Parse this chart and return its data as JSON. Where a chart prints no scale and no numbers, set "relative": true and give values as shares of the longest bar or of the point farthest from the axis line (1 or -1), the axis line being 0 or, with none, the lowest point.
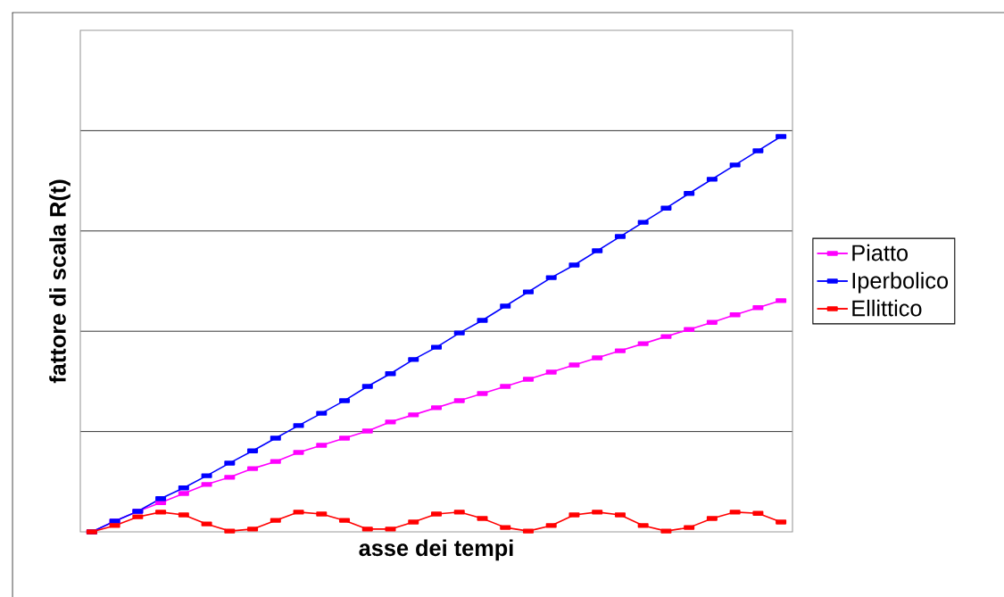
{
  "chart_data": {
    "type": "line",
    "xlabel": "asse dei tempi",
    "ylabel": "fattore di scala R(t)",
    "categories": [
      null,
      null,
      null,
      null,
      null,
      null,
      null,
      null,
      null,
      null,
      null,
      null,
      null,
      null,
      null,
      null,
      null,
      null,
      null,
      null,
      null,
      null,
      null,
      null,
      null,
      null,
      null,
      null,
      null,
      null,
      null
    ],
    "relative": true,
    "grid": "y",
    "legend": "right",
    "marker": "square",
    "line_style": "solid",
    "series": [
      {
        "name": "Piatto",
        "color": "#ff00ff",
        "values": [
          0,
          0.027,
          0.052,
          0.074,
          0.097,
          0.12,
          0.138,
          0.16,
          0.178,
          0.201,
          0.219,
          0.237,
          0.255,
          0.278,
          0.296,
          0.314,
          0.332,
          0.35,
          0.368,
          0.386,
          0.404,
          0.422,
          0.44,
          0.458,
          0.476,
          0.494,
          0.512,
          0.53,
          0.549,
          0.567,
          0.585
        ]
      },
      {
        "name": "Iperbolico",
        "color": "#0000ff",
        "values": [
          0,
          0.027,
          0.052,
          0.084,
          0.111,
          0.142,
          0.174,
          0.205,
          0.237,
          0.269,
          0.3,
          0.332,
          0.368,
          0.4,
          0.436,
          0.467,
          0.503,
          0.535,
          0.571,
          0.607,
          0.643,
          0.675,
          0.711,
          0.747,
          0.783,
          0.819,
          0.856,
          0.892,
          0.928,
          0.964,
          1
        ]
      },
      {
        "name": "Ellittico",
        "color": "#ff0000",
        "values": [
          0,
          0.016,
          0.038,
          0.05,
          0.043,
          0.02,
          0.002,
          0.007,
          0.029,
          0.05,
          0.045,
          0.029,
          0.007,
          0.007,
          0.025,
          0.045,
          0.05,
          0.034,
          0.011,
          0.002,
          0.016,
          0.043,
          0.05,
          0.043,
          0.016,
          0.002,
          0.011,
          0.034,
          0.05,
          0.047,
          0.025
        ]
      }
    ]
  }
}
